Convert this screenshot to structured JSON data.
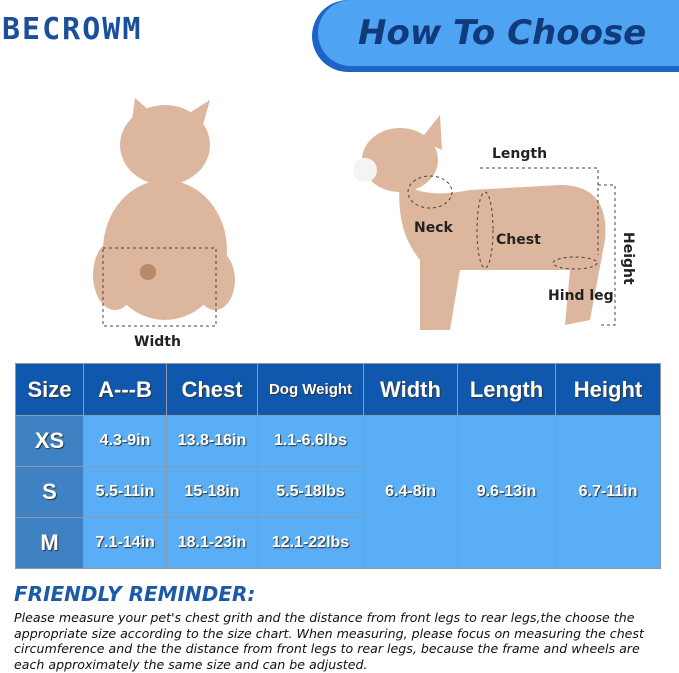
{
  "brand": "BECROWM",
  "banner": "How To Choose",
  "diagram": {
    "width": "Width",
    "length": "Length",
    "neck": "Neck",
    "chest": "Chest",
    "height": "Height",
    "hind_leg": "Hind leg"
  },
  "table": {
    "headers": [
      "Size",
      "A---B",
      "Chest",
      "Dog Weight",
      "Width",
      "Length",
      "Height"
    ],
    "rows": [
      {
        "size": "XS",
        "ab": "4.3-9in",
        "chest": "13.8-16in",
        "weight": "1.1-6.6lbs"
      },
      {
        "size": "S",
        "ab": "5.5-11in",
        "chest": "15-18in",
        "weight": "5.5-18lbs"
      },
      {
        "size": "M",
        "ab": "7.1-14in",
        "chest": "18.1-23in",
        "weight": "12.1-22lbs"
      }
    ],
    "shared": {
      "width": "6.4-8in",
      "length": "9.6-13in",
      "height": "6.7-11in"
    }
  },
  "reminder": {
    "title": "FRIENDLY REMINDER:",
    "text": "Please measure your pet's chest grith and the distance from front legs to rear legs,the choose the appropriate size according to the size chart. When measuring, please focus on measuring the chest circumference and the the distance from front legs to rear legs, because the frame and wheels are each approximately the same size and can be adjusted."
  },
  "colors": {
    "brand": "#1b4f9c",
    "header": "#1058ad",
    "cell": "#5aaef5",
    "size_cell": "#3f82c4"
  }
}
